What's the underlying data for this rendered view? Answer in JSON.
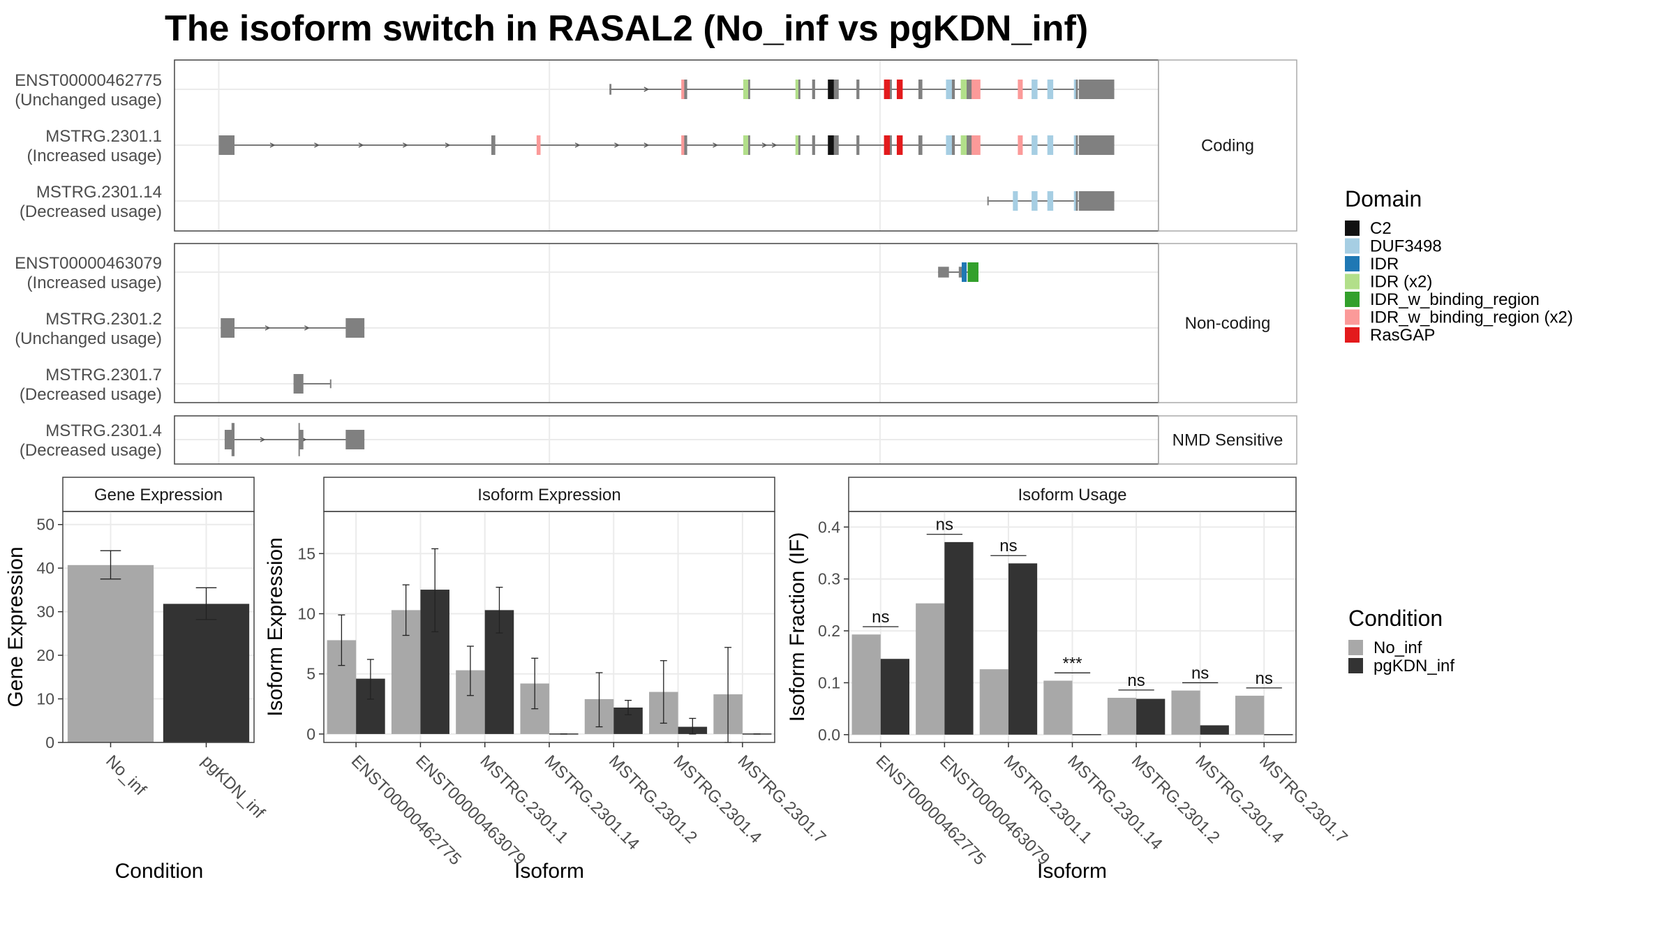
{
  "title": "The isoform switch in RASAL2 (No_inf vs pgKDN_inf)",
  "colors": {
    "no_inf": "#a8a8a8",
    "pgkdn_inf": "#333333",
    "intron": "#555555",
    "exon": "#808080",
    "panel_border": "#444444",
    "grid": "#ebebeb"
  },
  "structure": {
    "groups": [
      {
        "label": "Coding",
        "isoforms": [
          {
            "id": "ENST00000462775",
            "usage": "(Unchanged usage)",
            "start": 0.442,
            "end": 0.955,
            "arrows": [
              0.48,
              0.52
            ],
            "blocks": [
              [
                0.442,
                0.444,
                "exon",
                0.55
              ],
              [
                0.515,
                0.52,
                "IDR_w_binding_region (x2)"
              ],
              [
                0.518,
                0.521,
                "exon"
              ],
              [
                0.578,
                0.584,
                "IDR (x2)"
              ],
              [
                0.583,
                0.585,
                "exon"
              ],
              [
                0.631,
                0.635,
                "IDR (x2)"
              ],
              [
                0.634,
                0.636,
                "exon"
              ],
              [
                0.648,
                0.651,
                "exon"
              ],
              [
                0.664,
                0.673,
                "C2"
              ],
              [
                0.67,
                0.675,
                "exon"
              ],
              [
                0.693,
                0.696,
                "exon"
              ],
              [
                0.721,
                0.727,
                "RasGAP"
              ],
              [
                0.727,
                0.729,
                "exon"
              ],
              [
                0.734,
                0.74,
                "RasGAP"
              ],
              [
                0.756,
                0.76,
                "exon"
              ],
              [
                0.784,
                0.79,
                "DUF3498"
              ],
              [
                0.79,
                0.793,
                "exon"
              ],
              [
                0.799,
                0.809,
                "IDR (x2)"
              ],
              [
                0.805,
                0.811,
                "exon"
              ],
              [
                0.81,
                0.819,
                "IDR_w_binding_region (x2)"
              ],
              [
                0.857,
                0.862,
                "IDR_w_binding_region (x2)"
              ],
              [
                0.871,
                0.877,
                "DUF3498"
              ],
              [
                0.887,
                0.893,
                "DUF3498"
              ],
              [
                0.914,
                0.917,
                "DUF3498"
              ],
              [
                0.916,
                0.918,
                "exon"
              ],
              [
                0.919,
                0.955,
                "exon",
                1.0
              ]
            ]
          },
          {
            "id": "MSTRG.2301.1",
            "usage": "(Increased usage)",
            "start": 0.045,
            "end": 0.955,
            "arrows": [
              0.1,
              0.145,
              0.19,
              0.235,
              0.278,
              0.325,
              0.41,
              0.45,
              0.48,
              0.52,
              0.55,
              0.6,
              0.61
            ],
            "blocks": [
              [
                0.045,
                0.06,
                "exon",
                1.0
              ],
              [
                0.058,
                0.061,
                "exon"
              ],
              [
                0.322,
                0.326,
                "exon"
              ],
              [
                0.368,
                0.372,
                "IDR_w_binding_region (x2)"
              ],
              [
                0.515,
                0.52,
                "IDR_w_binding_region (x2)"
              ],
              [
                0.518,
                0.521,
                "exon"
              ],
              [
                0.578,
                0.584,
                "IDR (x2)"
              ],
              [
                0.583,
                0.585,
                "exon"
              ],
              [
                0.631,
                0.635,
                "IDR (x2)"
              ],
              [
                0.634,
                0.636,
                "exon"
              ],
              [
                0.648,
                0.651,
                "exon"
              ],
              [
                0.664,
                0.673,
                "C2"
              ],
              [
                0.67,
                0.675,
                "exon"
              ],
              [
                0.693,
                0.696,
                "exon"
              ],
              [
                0.721,
                0.727,
                "RasGAP"
              ],
              [
                0.727,
                0.729,
                "exon"
              ],
              [
                0.734,
                0.74,
                "RasGAP"
              ],
              [
                0.756,
                0.76,
                "exon"
              ],
              [
                0.784,
                0.79,
                "DUF3498"
              ],
              [
                0.79,
                0.793,
                "exon"
              ],
              [
                0.799,
                0.809,
                "IDR (x2)"
              ],
              [
                0.805,
                0.811,
                "exon"
              ],
              [
                0.81,
                0.819,
                "IDR_w_binding_region (x2)"
              ],
              [
                0.857,
                0.862,
                "IDR_w_binding_region (x2)"
              ],
              [
                0.871,
                0.877,
                "DUF3498"
              ],
              [
                0.887,
                0.893,
                "DUF3498"
              ],
              [
                0.914,
                0.917,
                "DUF3498"
              ],
              [
                0.916,
                0.918,
                "exon"
              ],
              [
                0.919,
                0.955,
                "exon",
                1.0
              ]
            ]
          },
          {
            "id": "MSTRG.2301.14",
            "usage": "(Decreased usage)",
            "start": 0.826,
            "end": 0.955,
            "arrows": [],
            "blocks": [
              [
                0.826,
                0.827,
                "exon",
                0.45
              ],
              [
                0.852,
                0.857,
                "DUF3498"
              ],
              [
                0.871,
                0.877,
                "DUF3498"
              ],
              [
                0.887,
                0.893,
                "DUF3498"
              ],
              [
                0.914,
                0.917,
                "DUF3498"
              ],
              [
                0.916,
                0.918,
                "exon"
              ],
              [
                0.919,
                0.955,
                "exon",
                1.0
              ]
            ]
          }
        ]
      },
      {
        "label": "Non-coding",
        "isoforms": [
          {
            "id": "ENST00000463079",
            "usage": "(Increased usage)",
            "start": 0.776,
            "end": 0.817,
            "arrows": [],
            "blocks": [
              [
                0.776,
                0.787,
                "exon",
                0.55
              ],
              [
                0.797,
                0.8,
                "exon",
                0.55
              ],
              [
                0.8,
                0.805,
                "IDR",
                1.0
              ],
              [
                0.806,
                0.817,
                "IDR_w_binding_region",
                1.0
              ]
            ]
          },
          {
            "id": "MSTRG.2301.2",
            "usage": "(Unchanged usage)",
            "start": 0.047,
            "end": 0.193,
            "arrows": [
              0.095,
              0.135
            ],
            "blocks": [
              [
                0.047,
                0.061,
                "exon",
                1.0
              ],
              [
                0.174,
                0.193,
                "exon",
                1.0
              ]
            ]
          },
          {
            "id": "MSTRG.2301.7",
            "usage": "(Decreased usage)",
            "start": 0.121,
            "end": 0.159,
            "arrows": [],
            "blocks": [
              [
                0.121,
                0.131,
                "exon",
                1.0
              ],
              [
                0.158,
                0.159,
                "exon",
                0.45
              ]
            ]
          }
        ]
      },
      {
        "label": "NMD Sensitive",
        "isoforms": [
          {
            "id": "MSTRG.2301.4",
            "usage": "(Decreased usage)",
            "start": 0.051,
            "end": 0.193,
            "arrows": [
              0.09,
              0.132
            ],
            "blocks": [
              [
                0.051,
                0.06,
                "exon",
                1.0
              ],
              [
                0.058,
                0.061,
                "exon",
                1.7
              ],
              [
                0.126,
                0.127,
                "exon",
                1.7
              ],
              [
                0.127,
                0.131,
                "exon",
                1.0
              ],
              [
                0.174,
                0.193,
                "exon",
                1.0
              ]
            ]
          }
        ]
      }
    ]
  },
  "domain_legend": {
    "title": "Domain",
    "items": [
      {
        "name": "C2",
        "color": "#111111"
      },
      {
        "name": "DUF3498",
        "color": "#a6cee3"
      },
      {
        "name": "IDR",
        "color": "#1f78b4"
      },
      {
        "name": "IDR (x2)",
        "color": "#b2df8a"
      },
      {
        "name": "IDR_w_binding_region",
        "color": "#33a02c"
      },
      {
        "name": "IDR_w_binding_region (x2)",
        "color": "#fb9a99"
      },
      {
        "name": "RasGAP",
        "color": "#e31a1c"
      }
    ]
  },
  "condition_legend": {
    "title": "Condition",
    "items": [
      {
        "name": "No_inf",
        "color": "#a8a8a8"
      },
      {
        "name": "pgKDN_inf",
        "color": "#333333"
      }
    ]
  },
  "chart_data": [
    {
      "type": "bar",
      "strip": "Gene Expression",
      "xlabel": "Condition",
      "ylabel": "Gene Expression",
      "ylim": [
        0,
        53
      ],
      "yticks": [
        0,
        10,
        20,
        30,
        40,
        50
      ],
      "categories": [
        "No_inf",
        "pgKDN_inf"
      ],
      "series": [
        {
          "values": [
            40.7,
            31.8
          ],
          "errors": [
            [
              37.5,
              44.0
            ],
            [
              28.2,
              35.5
            ]
          ]
        }
      ]
    },
    {
      "type": "bar",
      "strip": "Isoform Expression",
      "xlabel": "Isoform",
      "ylabel": "Isoform Expression",
      "ylim": [
        -0.7,
        18.5
      ],
      "yticks": [
        0,
        5,
        10,
        15
      ],
      "categories": [
        "ENST00000462775",
        "ENST00000463079",
        "MSTRG.2301.1",
        "MSTRG.2301.14",
        "MSTRG.2301.2",
        "MSTRG.2301.4",
        "MSTRG.2301.7"
      ],
      "series": [
        {
          "name": "No_inf",
          "values": [
            7.8,
            10.3,
            5.3,
            4.2,
            2.9,
            3.5,
            3.3
          ],
          "errors": [
            [
              5.7,
              9.9
            ],
            [
              8.2,
              12.4
            ],
            [
              3.2,
              7.3
            ],
            [
              2.1,
              6.3
            ],
            [
              0.6,
              5.1
            ],
            [
              0.9,
              6.1
            ],
            [
              -0.7,
              7.2
            ]
          ]
        },
        {
          "name": "pgKDN_inf",
          "values": [
            4.6,
            12.0,
            10.3,
            0.0,
            2.2,
            0.6,
            0.0
          ],
          "errors": [
            [
              2.9,
              6.2
            ],
            [
              8.5,
              15.4
            ],
            [
              8.4,
              12.2
            ],
            [
              0.0,
              0.0
            ],
            [
              1.6,
              2.8
            ],
            [
              0.0,
              1.3
            ],
            [
              0.0,
              0.0
            ]
          ]
        }
      ]
    },
    {
      "type": "bar",
      "strip": "Isoform Usage",
      "xlabel": "Isoform",
      "ylabel": "Isoform Fraction (IF)",
      "ylim": [
        -0.015,
        0.43
      ],
      "yticks": [
        "0.0",
        "0.1",
        "0.2",
        "0.3",
        "0.4"
      ],
      "categories": [
        "ENST00000462775",
        "ENST00000463079",
        "MSTRG.2301.1",
        "MSTRG.2301.14",
        "MSTRG.2301.2",
        "MSTRG.2301.4",
        "MSTRG.2301.7"
      ],
      "series": [
        {
          "name": "No_inf",
          "values": [
            0.193,
            0.253,
            0.126,
            0.104,
            0.071,
            0.085,
            0.075
          ]
        },
        {
          "name": "pgKDN_inf",
          "values": [
            0.146,
            0.371,
            0.33,
            0.0,
            0.069,
            0.018,
            0.0
          ]
        }
      ],
      "significance": [
        "ns",
        "ns",
        "ns",
        "***",
        "ns",
        "ns",
        "ns"
      ],
      "significance_y": [
        0.208,
        0.386,
        0.345,
        0.119,
        0.086,
        0.1,
        0.09
      ]
    }
  ]
}
